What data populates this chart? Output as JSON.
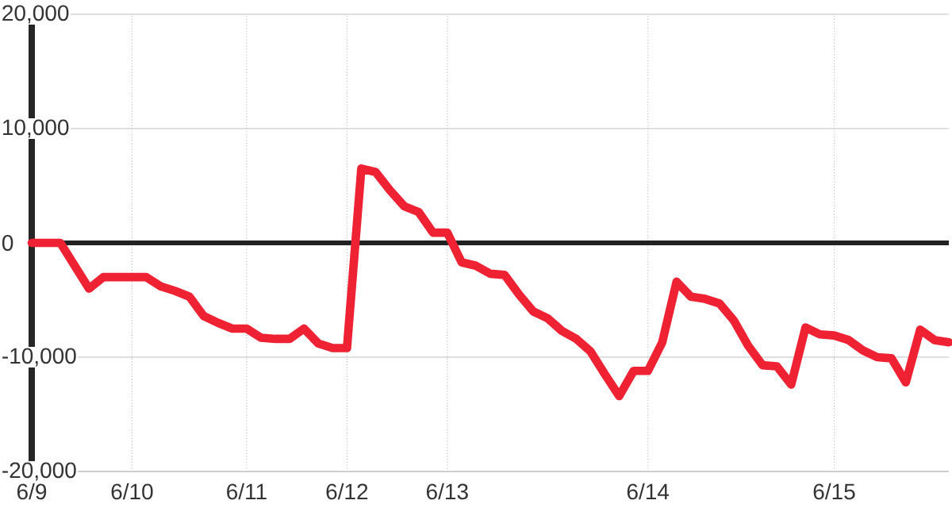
{
  "chart_data": {
    "type": "line",
    "categories": [
      "6/9",
      null,
      null,
      null,
      null,
      null,
      null,
      "6/10",
      null,
      null,
      null,
      null,
      null,
      null,
      null,
      "6/11",
      null,
      null,
      null,
      null,
      null,
      null,
      "6/12",
      null,
      null,
      null,
      null,
      null,
      null,
      "6/13",
      null,
      null,
      null,
      null,
      null,
      null,
      null,
      null,
      null,
      null,
      null,
      null,
      null,
      "6/14",
      null,
      null,
      null,
      null,
      null,
      null,
      null,
      null,
      null,
      null,
      null,
      null,
      "6/15",
      null,
      null,
      null,
      null,
      null,
      null,
      null,
      null
    ],
    "series": [
      {
        "color": "#ee2233",
        "values": [
          0,
          0,
          0,
          -2000,
          -4000,
          -3000,
          -3000,
          -3000,
          -3000,
          -3800,
          -4200,
          -4700,
          -6400,
          -7000,
          -7500,
          -7500,
          -8300,
          -8400,
          -8400,
          -7500,
          -8800,
          -9200,
          -9200,
          6500,
          6200,
          4600,
          3200,
          2700,
          900,
          900,
          -1700,
          -2000,
          -2700,
          -2800,
          -4500,
          -6000,
          -6600,
          -7700,
          -8400,
          -9500,
          -11500,
          -13400,
          -11200,
          -11200,
          -8700,
          -3400,
          -4700,
          -4900,
          -5300,
          -6800,
          -9000,
          -10700,
          -10800,
          -12400,
          -7400,
          -8000,
          -8100,
          -8500,
          -9400,
          -10000,
          -10100,
          -12200,
          -7600,
          -8500,
          -8700
        ]
      }
    ],
    "ylim": [
      -20000,
      20000
    ],
    "yticks": [
      {
        "value": -20000,
        "label": "-20,000"
      },
      {
        "value": -10000,
        "label": "-10,000"
      },
      {
        "value": 0,
        "label": "0"
      },
      {
        "value": 10000,
        "label": "10,000"
      },
      {
        "value": 20000,
        "label": "20,000"
      }
    ],
    "ref_lines": [
      {
        "axis": "y",
        "value": 0,
        "color": "#222222"
      }
    ],
    "grid": true,
    "marker": "none",
    "line_style": "solid"
  }
}
